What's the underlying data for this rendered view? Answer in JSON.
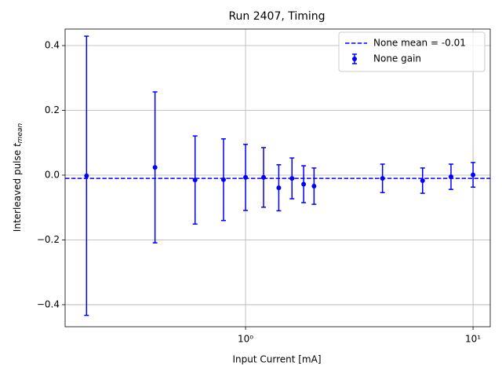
{
  "chart_data": {
    "type": "errorbar",
    "title": "Run 2407, Timing",
    "x_label": "Input Current [mA]",
    "y_label": {
      "text": "Interleaved pulse",
      "symbol": "t",
      "subscript": "mean"
    },
    "x": [
      0.2,
      0.4,
      0.6,
      0.8,
      1.0,
      1.2,
      1.4,
      1.6,
      1.8,
      2.0,
      4.0,
      6.0,
      8.0,
      10.0
    ],
    "series": [
      {
        "name": "None gain",
        "color": "#0000ff",
        "values": [
          -0.002,
          0.024,
          -0.015,
          -0.014,
          -0.007,
          -0.007,
          -0.039,
          -0.01,
          -0.028,
          -0.034,
          -0.01,
          -0.017,
          -0.005,
          0.001
        ],
        "errors": [
          0.431,
          0.233,
          0.136,
          0.126,
          0.102,
          0.092,
          0.071,
          0.063,
          0.057,
          0.056,
          0.044,
          0.039,
          0.039,
          0.038
        ]
      },
      {
        "name": "None mean = -0.01",
        "color": "#0000ff",
        "type": "hline",
        "value": -0.01
      }
    ],
    "xscale": "log",
    "xlim": [
      0.161,
      11.9
    ],
    "xticks": [
      {
        "value": 1,
        "label": "10⁰"
      },
      {
        "value": 10,
        "label": "10¹"
      }
    ],
    "ylim": [
      -0.468,
      0.451
    ],
    "yticks": [
      {
        "value": -0.4,
        "label": "−0.4"
      },
      {
        "value": -0.2,
        "label": "−0.2"
      },
      {
        "value": 0.0,
        "label": "0.0"
      },
      {
        "value": 0.2,
        "label": "0.2"
      },
      {
        "value": 0.4,
        "label": "0.4"
      }
    ],
    "grid": true,
    "legend": "upper right"
  }
}
